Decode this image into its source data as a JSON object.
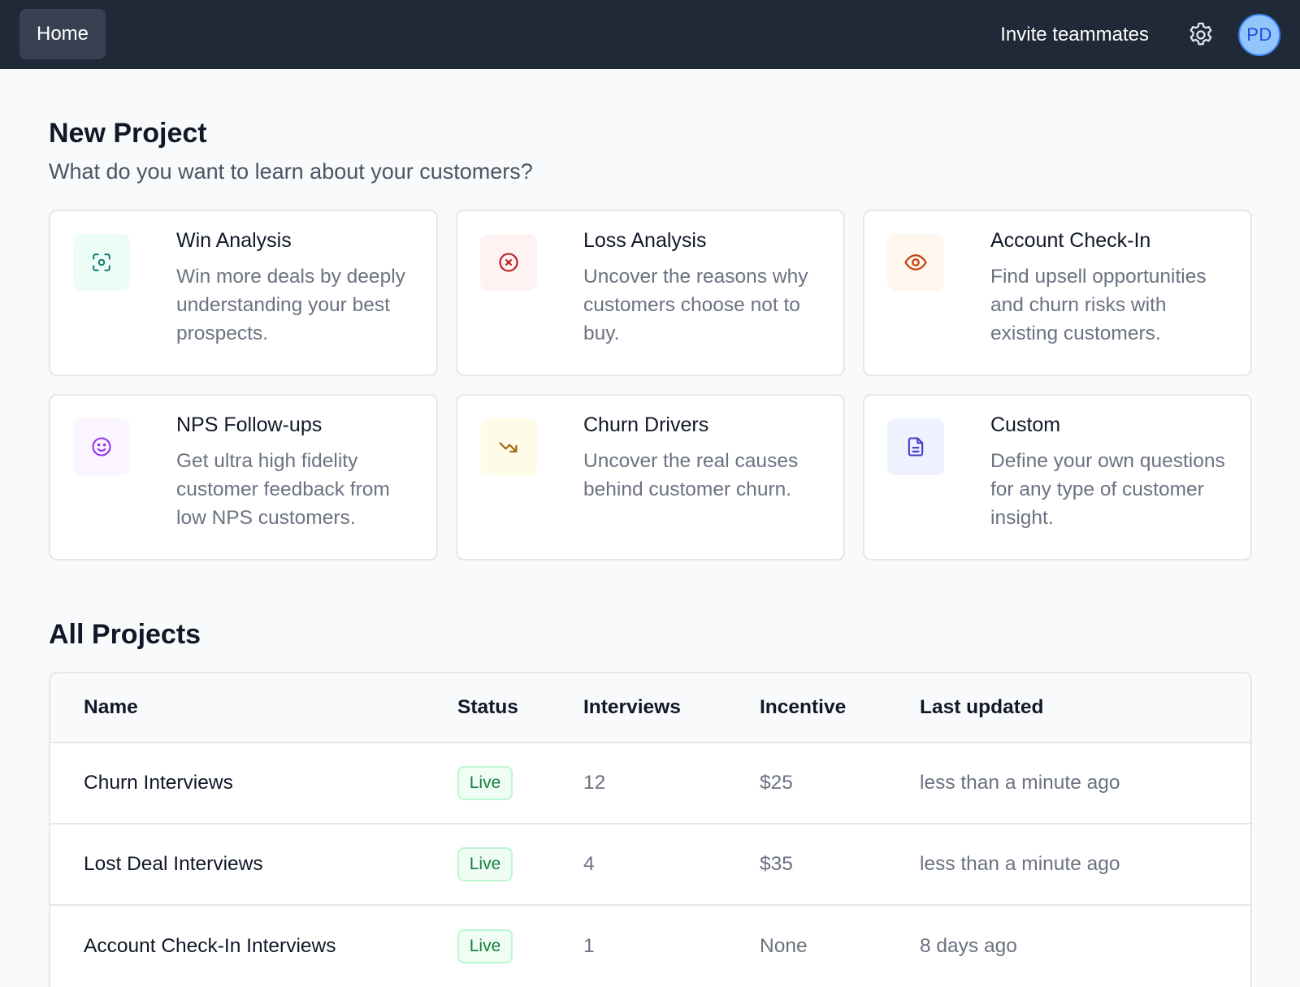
{
  "nav": {
    "home_label": "Home",
    "invite_label": "Invite teammates",
    "settings_icon": "gear-icon",
    "avatar_initials": "PD"
  },
  "new_project": {
    "title": "New Project",
    "subtitle": "What do you want to learn about your customers?",
    "cards": [
      {
        "title": "Win Analysis",
        "description": "Win more deals by deeply understanding your best prospects.",
        "icon": "focus-scan-icon",
        "icon_color": "#0f766e",
        "icon_bg": "#ecfdf5"
      },
      {
        "title": "Loss Analysis",
        "description": "Uncover the reasons why customers choose not to buy.",
        "icon": "x-circle-icon",
        "icon_color": "#b91c1c",
        "icon_bg": "#fef2f2"
      },
      {
        "title": "Account Check-In",
        "description": "Find upsell opportunities and churn risks with existing customers.",
        "icon": "eye-icon",
        "icon_color": "#c2410c",
        "icon_bg": "#fff7ed"
      },
      {
        "title": "NPS Follow-ups",
        "description": "Get ultra high fidelity customer feedback from low NPS customers.",
        "icon": "smile-icon",
        "icon_color": "#9333ea",
        "icon_bg": "#faf5ff"
      },
      {
        "title": "Churn Drivers",
        "description": "Uncover the real causes behind customer churn.",
        "icon": "trending-down-icon",
        "icon_color": "#a16207",
        "icon_bg": "#fefce8"
      },
      {
        "title": "Custom",
        "description": "Define your own questions for any type of customer insight.",
        "icon": "document-icon",
        "icon_color": "#4338ca",
        "icon_bg": "#eef2ff"
      }
    ]
  },
  "all_projects": {
    "title": "All Projects",
    "columns": [
      "Name",
      "Status",
      "Interviews",
      "Incentive",
      "Last updated"
    ],
    "rows": [
      {
        "name": "Churn Interviews",
        "status": "Live",
        "interviews": "12",
        "incentive": "$25",
        "updated": "less than a minute ago"
      },
      {
        "name": "Lost Deal Interviews",
        "status": "Live",
        "interviews": "4",
        "incentive": "$35",
        "updated": "less than a minute ago"
      },
      {
        "name": "Account Check-In Interviews",
        "status": "Live",
        "interviews": "1",
        "incentive": "None",
        "updated": "8 days ago"
      }
    ]
  }
}
